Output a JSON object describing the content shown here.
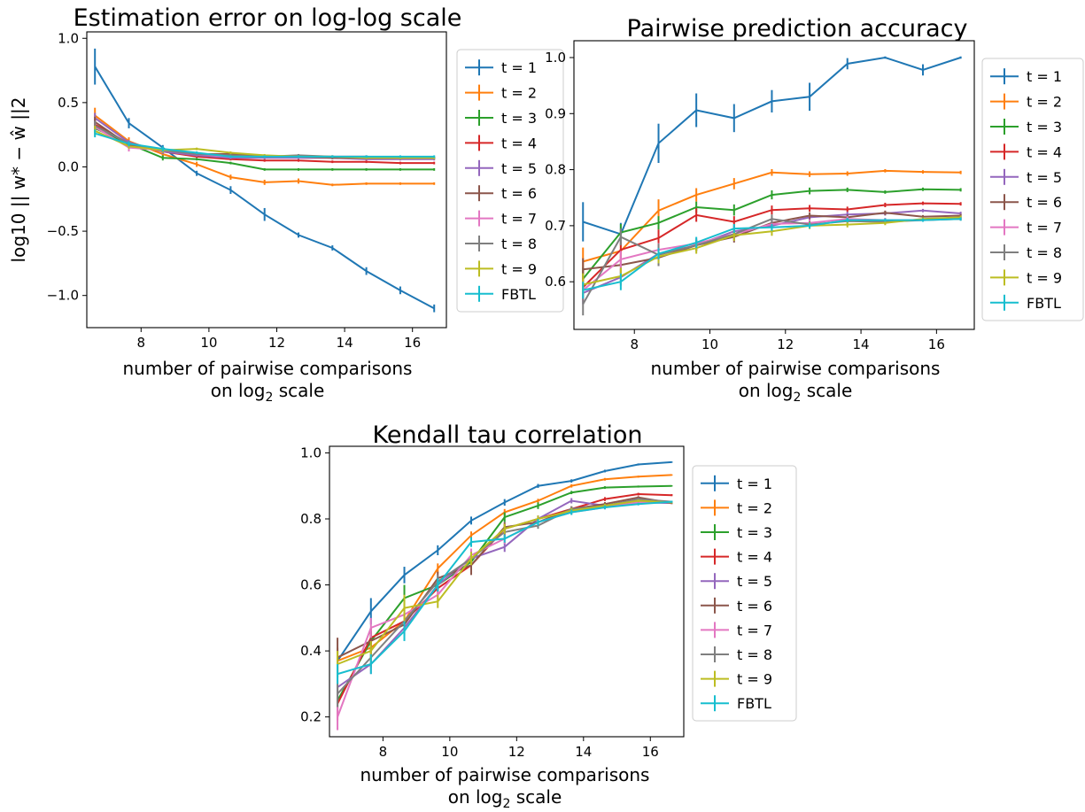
{
  "chart_data": [
    {
      "type": "line",
      "title": "Estimation error on log-log scale",
      "xlabel": "number of pairwise comparisons",
      "xlabel_line2": "on log",
      "xlabel_sub": "2",
      "xlabel_tail": " scale",
      "ylabel": "log10 || w* − ŵ ||2",
      "xlim": [
        6.4,
        17.0
      ],
      "ylim": [
        -1.25,
        1.05
      ],
      "xticks": [
        8,
        10,
        12,
        14,
        16
      ],
      "yticks": [
        -1.0,
        -0.5,
        0.0,
        0.5,
        1.0
      ],
      "ytick_labels": [
        "−1.0",
        "−0.5",
        "0.0",
        "0.5",
        "1.0"
      ],
      "grid": false,
      "legend_placement": "outside-right",
      "x": [
        6.64,
        7.64,
        8.64,
        9.64,
        10.64,
        11.64,
        12.64,
        13.64,
        14.64,
        15.64,
        16.64
      ],
      "series": [
        {
          "name": "t = 1",
          "color": "#1f77b4",
          "values": [
            0.78,
            0.34,
            0.15,
            -0.05,
            -0.18,
            -0.37,
            -0.53,
            -0.63,
            -0.81,
            -0.96,
            -1.1
          ],
          "err": [
            0.14,
            0.04,
            0.02,
            0.02,
            0.03,
            0.05,
            0.02,
            0.02,
            0.03,
            0.03,
            0.03
          ]
        },
        {
          "name": "t = 2",
          "color": "#ff7f0e",
          "values": [
            0.4,
            0.2,
            0.1,
            0.02,
            -0.08,
            -0.12,
            -0.11,
            -0.14,
            -0.13,
            -0.13,
            -0.13
          ],
          "err": [
            0.06,
            0.03,
            0.02,
            0.02,
            0.02,
            0.02,
            0.02,
            0.01,
            0.01,
            0.01,
            0.01
          ]
        },
        {
          "name": "t = 3",
          "color": "#2ca02c",
          "values": [
            0.3,
            0.18,
            0.07,
            0.06,
            0.03,
            -0.02,
            -0.02,
            -0.02,
            -0.02,
            -0.02,
            -0.02
          ],
          "err": [
            0.04,
            0.02,
            0.02,
            0.01,
            0.01,
            0.01,
            0.01,
            0.01,
            0.01,
            0.01,
            0.01
          ]
        },
        {
          "name": "t = 4",
          "color": "#d62728",
          "values": [
            0.33,
            0.18,
            0.12,
            0.08,
            0.06,
            0.05,
            0.05,
            0.04,
            0.04,
            0.03,
            0.03
          ],
          "err": [
            0.04,
            0.02,
            0.02,
            0.01,
            0.01,
            0.01,
            0.01,
            0.01,
            0.01,
            0.01,
            0.01
          ]
        },
        {
          "name": "t = 5",
          "color": "#9467bd",
          "values": [
            0.38,
            0.19,
            0.12,
            0.09,
            0.07,
            0.07,
            0.07,
            0.07,
            0.06,
            0.06,
            0.06
          ],
          "err": [
            0.04,
            0.02,
            0.02,
            0.01,
            0.01,
            0.01,
            0.01,
            0.01,
            0.01,
            0.01,
            0.01
          ]
        },
        {
          "name": "t = 6",
          "color": "#8c564b",
          "values": [
            0.35,
            0.17,
            0.13,
            0.1,
            0.1,
            0.08,
            0.08,
            0.07,
            0.07,
            0.07,
            0.07
          ],
          "err": [
            0.04,
            0.02,
            0.02,
            0.01,
            0.01,
            0.01,
            0.01,
            0.01,
            0.01,
            0.01,
            0.01
          ]
        },
        {
          "name": "t = 7",
          "color": "#e377c2",
          "values": [
            0.31,
            0.15,
            0.13,
            0.1,
            0.08,
            0.08,
            0.08,
            0.08,
            0.08,
            0.07,
            0.07
          ],
          "err": [
            0.04,
            0.03,
            0.02,
            0.01,
            0.01,
            0.01,
            0.01,
            0.01,
            0.01,
            0.01,
            0.01
          ]
        },
        {
          "name": "t = 8",
          "color": "#7f7f7f",
          "values": [
            0.32,
            0.18,
            0.13,
            0.1,
            0.09,
            0.08,
            0.09,
            0.08,
            0.08,
            0.07,
            0.07
          ],
          "err": [
            0.04,
            0.02,
            0.02,
            0.01,
            0.01,
            0.01,
            0.01,
            0.01,
            0.01,
            0.01,
            0.01
          ]
        },
        {
          "name": "t = 9",
          "color": "#bcbd22",
          "values": [
            0.28,
            0.16,
            0.13,
            0.14,
            0.11,
            0.09,
            0.08,
            0.08,
            0.07,
            0.07,
            0.07
          ],
          "err": [
            0.04,
            0.02,
            0.02,
            0.01,
            0.01,
            0.01,
            0.01,
            0.01,
            0.01,
            0.01,
            0.01
          ]
        },
        {
          "name": "FBTL",
          "color": "#17becf",
          "values": [
            0.26,
            0.18,
            0.14,
            0.11,
            0.08,
            0.08,
            0.08,
            0.08,
            0.08,
            0.08,
            0.08
          ],
          "err": [
            0.03,
            0.02,
            0.02,
            0.01,
            0.01,
            0.01,
            0.01,
            0.01,
            0.01,
            0.01,
            0.01
          ]
        }
      ]
    },
    {
      "type": "line",
      "title": "Pairwise prediction accuracy",
      "xlabel": "number of pairwise comparisons",
      "xlabel_line2": "on log",
      "xlabel_sub": "2",
      "xlabel_tail": " scale",
      "ylabel": "",
      "xlim": [
        6.4,
        17.0
      ],
      "ylim": [
        0.515,
        1.03
      ],
      "xticks": [
        8,
        10,
        12,
        14,
        16
      ],
      "yticks": [
        0.6,
        0.7,
        0.8,
        0.9,
        1.0
      ],
      "ytick_labels": [
        "0.6",
        "0.7",
        "0.8",
        "0.9",
        "1.0"
      ],
      "grid": false,
      "legend_placement": "outside-right",
      "x": [
        6.64,
        7.64,
        8.64,
        9.64,
        10.64,
        11.64,
        12.64,
        13.64,
        14.64,
        15.64,
        16.64
      ],
      "series": [
        {
          "name": "t = 1",
          "color": "#1f77b4",
          "values": [
            0.707,
            0.685,
            0.847,
            0.906,
            0.892,
            0.922,
            0.93,
            0.989,
            1.0,
            0.978,
            1.0
          ],
          "err": [
            0.035,
            0.02,
            0.035,
            0.03,
            0.025,
            0.02,
            0.025,
            0.01,
            0.002,
            0.01,
            0.002
          ]
        },
        {
          "name": "t = 2",
          "color": "#ff7f0e",
          "values": [
            0.636,
            0.655,
            0.727,
            0.755,
            0.775,
            0.795,
            0.792,
            0.793,
            0.798,
            0.796,
            0.795
          ],
          "err": [
            0.025,
            0.015,
            0.02,
            0.012,
            0.01,
            0.006,
            0.005,
            0.004,
            0.003,
            0.003,
            0.003
          ]
        },
        {
          "name": "t = 3",
          "color": "#2ca02c",
          "values": [
            0.605,
            0.688,
            0.705,
            0.733,
            0.728,
            0.755,
            0.762,
            0.764,
            0.76,
            0.765,
            0.764
          ],
          "err": [
            0.02,
            0.015,
            0.012,
            0.01,
            0.01,
            0.008,
            0.006,
            0.004,
            0.003,
            0.003,
            0.003
          ]
        },
        {
          "name": "t = 4",
          "color": "#d62728",
          "values": [
            0.59,
            0.657,
            0.678,
            0.719,
            0.707,
            0.728,
            0.731,
            0.729,
            0.737,
            0.74,
            0.739
          ],
          "err": [
            0.02,
            0.015,
            0.015,
            0.012,
            0.01,
            0.008,
            0.006,
            0.005,
            0.004,
            0.003,
            0.003
          ]
        },
        {
          "name": "t = 5",
          "color": "#9467bd",
          "values": [
            0.58,
            0.608,
            0.65,
            0.665,
            0.69,
            0.7,
            0.715,
            0.72,
            0.722,
            0.727,
            0.722
          ],
          "err": [
            0.02,
            0.015,
            0.012,
            0.01,
            0.01,
            0.008,
            0.006,
            0.005,
            0.004,
            0.003,
            0.003
          ]
        },
        {
          "name": "t = 6",
          "color": "#8c564b",
          "values": [
            0.622,
            0.63,
            0.643,
            0.665,
            0.68,
            0.705,
            0.718,
            0.715,
            0.723,
            0.716,
            0.718
          ],
          "err": [
            0.02,
            0.015,
            0.015,
            0.01,
            0.01,
            0.008,
            0.006,
            0.005,
            0.004,
            0.003,
            0.003
          ]
        },
        {
          "name": "t = 7",
          "color": "#e377c2",
          "values": [
            0.585,
            0.64,
            0.657,
            0.668,
            0.685,
            0.703,
            0.705,
            0.712,
            0.71,
            0.71,
            0.713
          ],
          "err": [
            0.02,
            0.015,
            0.012,
            0.01,
            0.01,
            0.008,
            0.006,
            0.005,
            0.004,
            0.003,
            0.003
          ]
        },
        {
          "name": "t = 8",
          "color": "#7f7f7f",
          "values": [
            0.56,
            0.68,
            0.648,
            0.665,
            0.685,
            0.712,
            0.702,
            0.708,
            0.707,
            0.71,
            0.712
          ],
          "err": [
            0.02,
            0.015,
            0.02,
            0.01,
            0.01,
            0.008,
            0.006,
            0.005,
            0.004,
            0.003,
            0.003
          ]
        },
        {
          "name": "t = 9",
          "color": "#bcbd22",
          "values": [
            0.595,
            0.61,
            0.645,
            0.66,
            0.683,
            0.69,
            0.7,
            0.702,
            0.705,
            0.712,
            0.715
          ],
          "err": [
            0.02,
            0.015,
            0.012,
            0.01,
            0.01,
            0.008,
            0.006,
            0.005,
            0.004,
            0.003,
            0.003
          ]
        },
        {
          "name": "FBTL",
          "color": "#17becf",
          "values": [
            0.585,
            0.6,
            0.65,
            0.67,
            0.695,
            0.697,
            0.7,
            0.71,
            0.71,
            0.71,
            0.712
          ],
          "err": [
            0.015,
            0.015,
            0.01,
            0.01,
            0.008,
            0.006,
            0.005,
            0.004,
            0.003,
            0.003,
            0.003
          ]
        }
      ]
    },
    {
      "type": "line",
      "title": "Kendall tau correlation",
      "xlabel": "number of pairwise comparisons",
      "xlabel_line2": "on log",
      "xlabel_sub": "2",
      "xlabel_tail": " scale",
      "ylabel": "",
      "xlim": [
        6.4,
        17.0
      ],
      "ylim": [
        0.14,
        1.02
      ],
      "xticks": [
        8,
        10,
        12,
        14,
        16
      ],
      "yticks": [
        0.2,
        0.4,
        0.6,
        0.8,
        1.0
      ],
      "ytick_labels": [
        "0.2",
        "0.4",
        "0.6",
        "0.8",
        "1.0"
      ],
      "grid": false,
      "legend_placement": "outside-right",
      "x": [
        6.64,
        7.64,
        8.64,
        9.64,
        10.64,
        11.64,
        12.64,
        13.64,
        14.64,
        15.64,
        16.64
      ],
      "series": [
        {
          "name": "t = 1",
          "color": "#1f77b4",
          "values": [
            0.37,
            0.52,
            0.63,
            0.705,
            0.795,
            0.85,
            0.9,
            0.915,
            0.945,
            0.965,
            0.972
          ],
          "err": [
            0.04,
            0.04,
            0.025,
            0.015,
            0.012,
            0.01,
            0.006,
            0.005,
            0.004,
            0.003,
            0.002
          ]
        },
        {
          "name": "t = 2",
          "color": "#ff7f0e",
          "values": [
            0.37,
            0.41,
            0.49,
            0.65,
            0.75,
            0.82,
            0.855,
            0.9,
            0.92,
            0.928,
            0.933
          ],
          "err": [
            0.04,
            0.03,
            0.025,
            0.015,
            0.012,
            0.01,
            0.006,
            0.005,
            0.004,
            0.003,
            0.002
          ]
        },
        {
          "name": "t = 3",
          "color": "#2ca02c",
          "values": [
            0.25,
            0.43,
            0.56,
            0.6,
            0.67,
            0.805,
            0.84,
            0.88,
            0.895,
            0.898,
            0.9
          ],
          "err": [
            0.04,
            0.03,
            0.04,
            0.02,
            0.015,
            0.015,
            0.01,
            0.005,
            0.004,
            0.003,
            0.002
          ]
        },
        {
          "name": "t = 4",
          "color": "#d62728",
          "values": [
            0.24,
            0.44,
            0.49,
            0.59,
            0.66,
            0.77,
            0.8,
            0.83,
            0.86,
            0.875,
            0.872
          ],
          "err": [
            0.05,
            0.03,
            0.025,
            0.02,
            0.02,
            0.015,
            0.01,
            0.008,
            0.006,
            0.004,
            0.003
          ]
        },
        {
          "name": "t = 5",
          "color": "#9467bd",
          "values": [
            0.29,
            0.36,
            0.47,
            0.6,
            0.68,
            0.715,
            0.8,
            0.855,
            0.84,
            0.85,
            0.848
          ],
          "err": [
            0.04,
            0.03,
            0.025,
            0.02,
            0.02,
            0.015,
            0.01,
            0.008,
            0.006,
            0.004,
            0.003
          ]
        },
        {
          "name": "t = 6",
          "color": "#8c564b",
          "values": [
            0.38,
            0.43,
            0.48,
            0.62,
            0.66,
            0.775,
            0.79,
            0.83,
            0.845,
            0.865,
            0.848
          ],
          "err": [
            0.06,
            0.03,
            0.03,
            0.02,
            0.03,
            0.015,
            0.01,
            0.008,
            0.006,
            0.004,
            0.003
          ]
        },
        {
          "name": "t = 7",
          "color": "#e377c2",
          "values": [
            0.2,
            0.47,
            0.51,
            0.57,
            0.69,
            0.74,
            0.79,
            0.82,
            0.835,
            0.85,
            0.852
          ],
          "err": [
            0.04,
            0.03,
            0.025,
            0.02,
            0.02,
            0.015,
            0.01,
            0.008,
            0.006,
            0.004,
            0.003
          ]
        },
        {
          "name": "t = 8",
          "color": "#7f7f7f",
          "values": [
            0.27,
            0.38,
            0.49,
            0.61,
            0.68,
            0.76,
            0.78,
            0.83,
            0.84,
            0.86,
            0.852
          ],
          "err": [
            0.04,
            0.03,
            0.025,
            0.02,
            0.02,
            0.015,
            0.01,
            0.008,
            0.006,
            0.004,
            0.003
          ]
        },
        {
          "name": "t = 9",
          "color": "#bcbd22",
          "values": [
            0.36,
            0.4,
            0.53,
            0.55,
            0.68,
            0.77,
            0.8,
            0.825,
            0.84,
            0.855,
            0.85
          ],
          "err": [
            0.04,
            0.03,
            0.04,
            0.02,
            0.02,
            0.015,
            0.01,
            0.008,
            0.006,
            0.004,
            0.003
          ]
        },
        {
          "name": "FBTL",
          "color": "#17becf",
          "values": [
            0.33,
            0.36,
            0.46,
            0.6,
            0.73,
            0.74,
            0.79,
            0.82,
            0.835,
            0.845,
            0.852
          ],
          "err": [
            0.03,
            0.03,
            0.03,
            0.02,
            0.015,
            0.012,
            0.01,
            0.008,
            0.006,
            0.004,
            0.003
          ]
        }
      ]
    }
  ]
}
